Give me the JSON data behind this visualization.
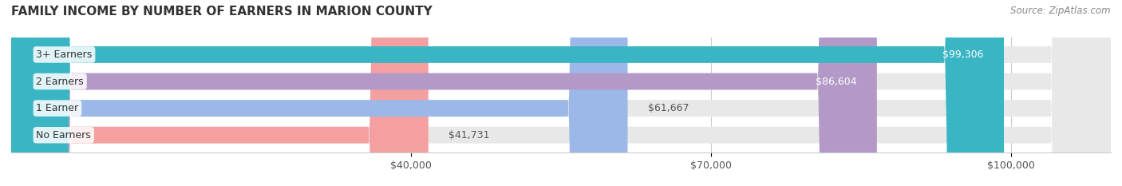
{
  "title": "FAMILY INCOME BY NUMBER OF EARNERS IN MARION COUNTY",
  "source": "Source: ZipAtlas.com",
  "categories": [
    "No Earners",
    "1 Earner",
    "2 Earners",
    "3+ Earners"
  ],
  "values": [
    41731,
    61667,
    86604,
    99306
  ],
  "bar_colors": [
    "#f4a0a0",
    "#9bb8e8",
    "#b399c8",
    "#39b5c4"
  ],
  "label_colors": [
    "#333333",
    "#333333",
    "#ffffff",
    "#ffffff"
  ],
  "bar_bg_color": "#f0f0f0",
  "background_color": "#ffffff",
  "xmin": 0,
  "xmax": 110000,
  "xticks": [
    40000,
    70000,
    100000
  ],
  "xtick_labels": [
    "$40,000",
    "$70,000",
    "$100,000"
  ],
  "value_labels": [
    "$41,731",
    "$61,667",
    "$86,604",
    "$99,306"
  ],
  "title_fontsize": 11,
  "source_fontsize": 8.5,
  "bar_label_fontsize": 9,
  "value_label_fontsize": 9,
  "tick_fontsize": 9
}
